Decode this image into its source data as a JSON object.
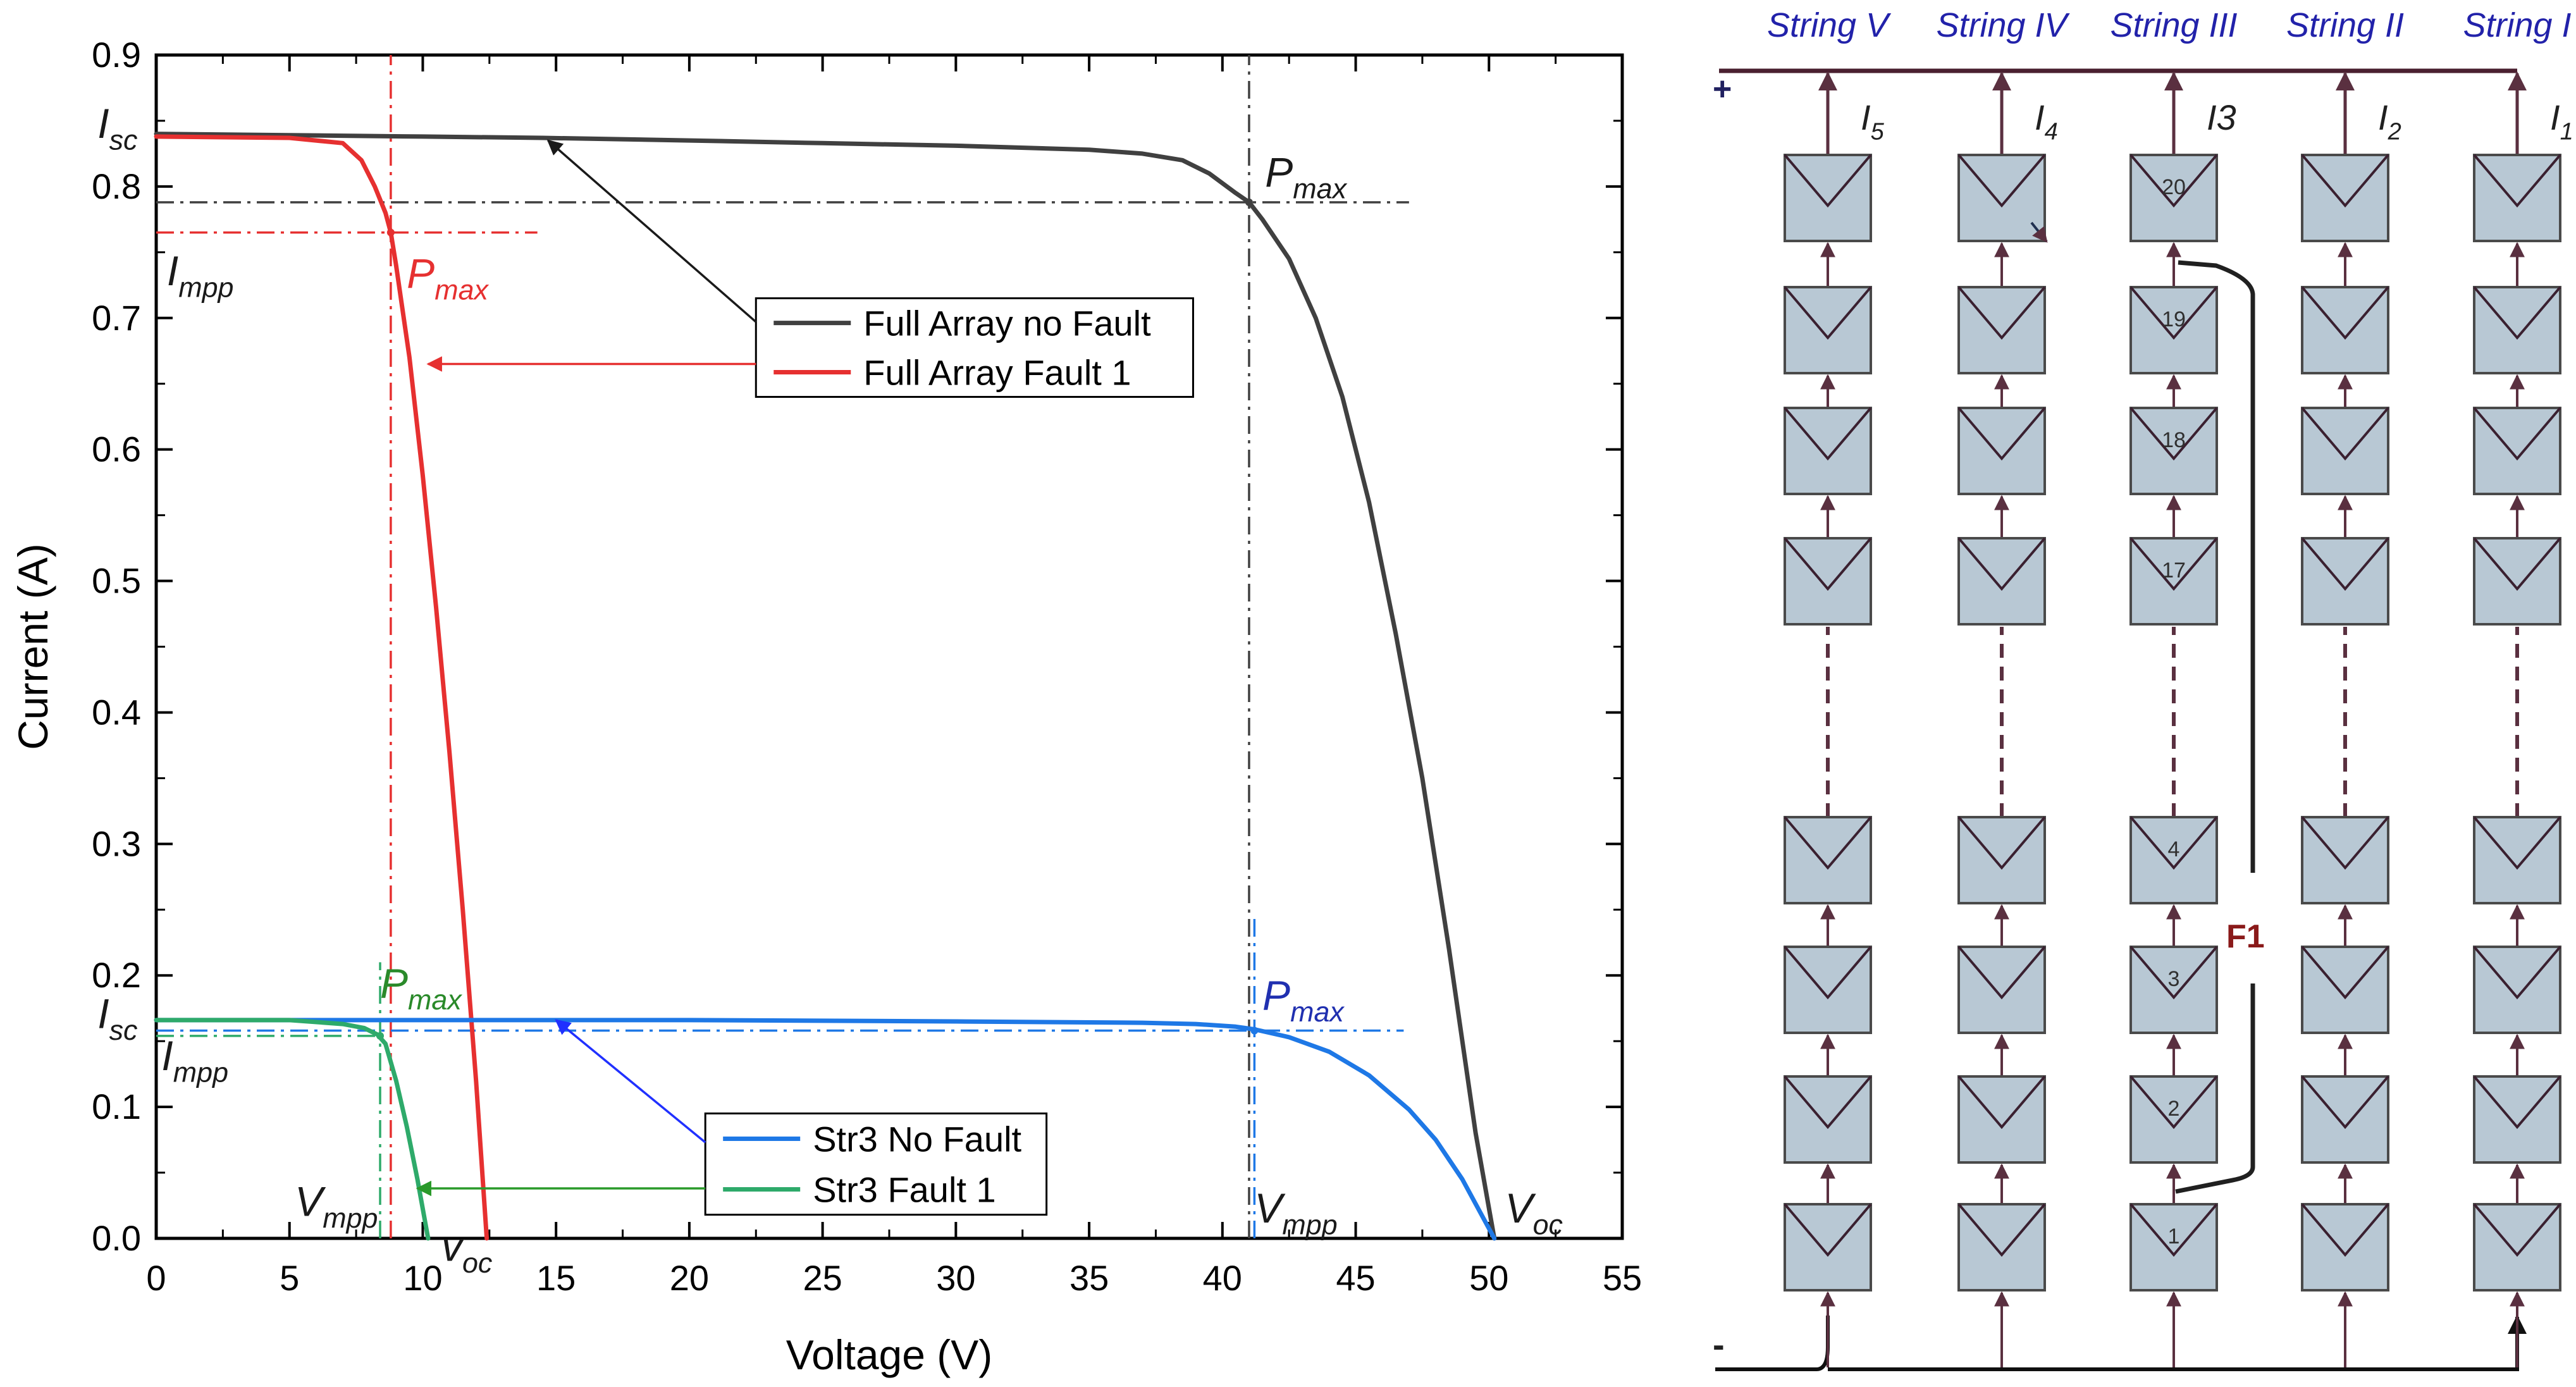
{
  "chart_data": {
    "type": "line",
    "xlabel": "Voltage (V)",
    "ylabel": "Current (A)",
    "xlim": [
      0,
      55
    ],
    "ylim": [
      0,
      0.9
    ],
    "x_ticks": [
      "0",
      "5",
      "10",
      "15",
      "20",
      "25",
      "30",
      "35",
      "40",
      "45",
      "50",
      "55"
    ],
    "y_ticks": [
      "0.0",
      "0.1",
      "0.2",
      "0.3",
      "0.4",
      "0.5",
      "0.6",
      "0.7",
      "0.8",
      "0.9"
    ],
    "series": [
      {
        "name": "Full Array no Fault",
        "color": "#404040",
        "x": [
          0,
          5,
          10,
          14.5,
          20,
          25,
          30,
          35,
          37,
          38.5,
          39.5,
          40.5,
          41,
          41.5,
          42.5,
          43.5,
          44.5,
          45.5,
          46.5,
          47.5,
          48.5,
          49.5,
          50.2
        ],
        "y": [
          0.84,
          0.839,
          0.838,
          0.837,
          0.835,
          0.833,
          0.831,
          0.828,
          0.825,
          0.82,
          0.81,
          0.795,
          0.788,
          0.775,
          0.745,
          0.7,
          0.64,
          0.56,
          0.46,
          0.35,
          0.22,
          0.08,
          0
        ]
      },
      {
        "name": "Full Array Fault 1",
        "color": "#e63030",
        "x": [
          0,
          5,
          7,
          7.7,
          8.2,
          8.6,
          8.8,
          9.0,
          9.5,
          10,
          10.5,
          11,
          11.5,
          12,
          12.4
        ],
        "y": [
          0.838,
          0.837,
          0.833,
          0.82,
          0.8,
          0.78,
          0.765,
          0.74,
          0.67,
          0.58,
          0.48,
          0.37,
          0.25,
          0.12,
          0
        ]
      },
      {
        "name": "Str3 No Fault",
        "color": "#1e78e6",
        "x": [
          0,
          10,
          20,
          30,
          37,
          39,
          40.5,
          41.2,
          42.5,
          44,
          45.5,
          47,
          48,
          49,
          50.2
        ],
        "y": [
          0.166,
          0.166,
          0.166,
          0.165,
          0.164,
          0.163,
          0.161,
          0.159,
          0.153,
          0.142,
          0.124,
          0.098,
          0.075,
          0.045,
          0
        ]
      },
      {
        "name": "Str3 Fault 1",
        "color": "#2eaa6a",
        "x": [
          0,
          5,
          7,
          7.8,
          8.3,
          8.6,
          9,
          9.4,
          9.8,
          10.2
        ],
        "y": [
          0.166,
          0.166,
          0.163,
          0.16,
          0.155,
          0.148,
          0.12,
          0.085,
          0.045,
          0
        ]
      }
    ],
    "reference_lines": [
      {
        "kind": "vertical",
        "x": 41,
        "y_from": 0,
        "y_to": 0.9,
        "color": "#404040"
      },
      {
        "kind": "horizontal",
        "y": 0.788,
        "x_from": 0,
        "x_to": 47,
        "color": "#404040"
      },
      {
        "kind": "vertical",
        "x": 8.8,
        "y_from": 0,
        "y_to": 0.9,
        "color": "#e63030"
      },
      {
        "kind": "horizontal",
        "y": 0.765,
        "x_from": 0,
        "x_to": 14.3,
        "color": "#e63030"
      },
      {
        "kind": "vertical",
        "x": 41.2,
        "y_from": 0,
        "y_to": 0.243,
        "color": "#1e78e6"
      },
      {
        "kind": "horizontal",
        "y": 0.158,
        "x_from": 0,
        "x_to": 46.8,
        "color": "#1e78e6"
      },
      {
        "kind": "vertical",
        "x": 8.4,
        "y_from": 0,
        "y_to": 0.21,
        "color": "#2eaa6a"
      },
      {
        "kind": "horizontal",
        "y": 0.154,
        "x_from": 0,
        "x_to": 8.4,
        "color": "#2eaa6a"
      }
    ],
    "markers": [
      {
        "x": 41,
        "y": 0.788,
        "color": "#404040"
      },
      {
        "x": 8.8,
        "y": 0.765,
        "color": "#e63030"
      },
      {
        "x": 41.2,
        "y": 0.158,
        "color": "#1e78e6"
      },
      {
        "x": 8.4,
        "y": 0.154,
        "color": "#2eaa6a"
      }
    ],
    "annotations": [
      {
        "main": "I",
        "sub": "sc",
        "x": -2.2,
        "y": 0.837,
        "color": "#1a1a1a"
      },
      {
        "main": "I",
        "sub": "mpp",
        "x": 0.4,
        "y": 0.725,
        "color": "#1a1a1a"
      },
      {
        "main": "P",
        "sub": "max",
        "x": 41.6,
        "y": 0.8,
        "color": "#1a1a1a"
      },
      {
        "main": "P",
        "sub": "max",
        "x": 9.4,
        "y": 0.723,
        "color": "#e63030"
      },
      {
        "main": "I",
        "sub": "sc",
        "x": -2.2,
        "y": 0.16,
        "color": "#1a1a1a"
      },
      {
        "main": "I",
        "sub": "mpp",
        "x": 0.2,
        "y": 0.128,
        "color": "#1a1a1a"
      },
      {
        "main": "P",
        "sub": "max",
        "x": 8.4,
        "y": 0.183,
        "color": "#2a8a2a"
      },
      {
        "main": "P",
        "sub": "max",
        "x": 41.5,
        "y": 0.174,
        "color": "#2030b0"
      },
      {
        "main": "V",
        "sub": "mpp",
        "x": 5.2,
        "y": 0.017,
        "color": "#1a1a1a"
      },
      {
        "main": "v",
        "sub": "oc",
        "x": 10.7,
        "y": -0.017,
        "color": "#1a1a1a"
      },
      {
        "main": "V",
        "sub": "mpp",
        "x": 41.2,
        "y": 0.012,
        "color": "#1a1a1a"
      },
      {
        "main": "V",
        "sub": "oc",
        "x": 50.6,
        "y": 0.012,
        "color": "#1a1a1a"
      }
    ],
    "legends": [
      {
        "entries": [
          "Full Array no Fault",
          "Full Array Fault 1"
        ],
        "colors": [
          "#404040",
          "#e63030"
        ],
        "x0": 22.5,
        "y0": 0.715,
        "x1": 38.9,
        "y1": 0.64
      },
      {
        "entries": [
          "Str3 No Fault",
          "Str3 Fault 1"
        ],
        "colors": [
          "#1e78e6",
          "#2eaa6a"
        ],
        "x0": 20.6,
        "y0": 0.095,
        "x1": 33.4,
        "y1": 0.018
      }
    ],
    "arrows": [
      {
        "from": [
          22.5,
          0.697
        ],
        "to": [
          14.7,
          0.835
        ],
        "color": "#1a1a1a"
      },
      {
        "from": [
          22.5,
          0.665
        ],
        "to": [
          10.2,
          0.665
        ],
        "color": "#e63030"
      },
      {
        "from": [
          20.6,
          0.073
        ],
        "to": [
          15.0,
          0.166
        ],
        "color": "#2030ff"
      },
      {
        "from": [
          20.6,
          0.038
        ],
        "to": [
          9.8,
          0.038
        ],
        "color": "#2a9a2a"
      }
    ]
  },
  "diagram": {
    "string_labels": [
      "String V",
      "String IV",
      "String III",
      "String II",
      "String I"
    ],
    "current_labels": [
      {
        "main": "I",
        "sub": "5"
      },
      {
        "main": "I",
        "sub": "4"
      },
      {
        "main": "I3",
        "sub": ""
      },
      {
        "main": "I",
        "sub": "2"
      },
      {
        "main": "I",
        "sub": "1"
      }
    ],
    "module_numbers_string3": [
      "20",
      "19",
      "18",
      "17",
      "4",
      "3",
      "2",
      "1"
    ],
    "plus_label": "+",
    "minus_label": "-",
    "fault_label": "F1",
    "colors": {
      "bus": "#4a2030",
      "module_fill": "#b8c8d4",
      "module_stroke": "#4a4a4a",
      "connector": "#5a3040",
      "string_label": "#2222aa",
      "fault": "#8a1a1a",
      "fault_line": "#202020",
      "wire": "#101010"
    }
  }
}
